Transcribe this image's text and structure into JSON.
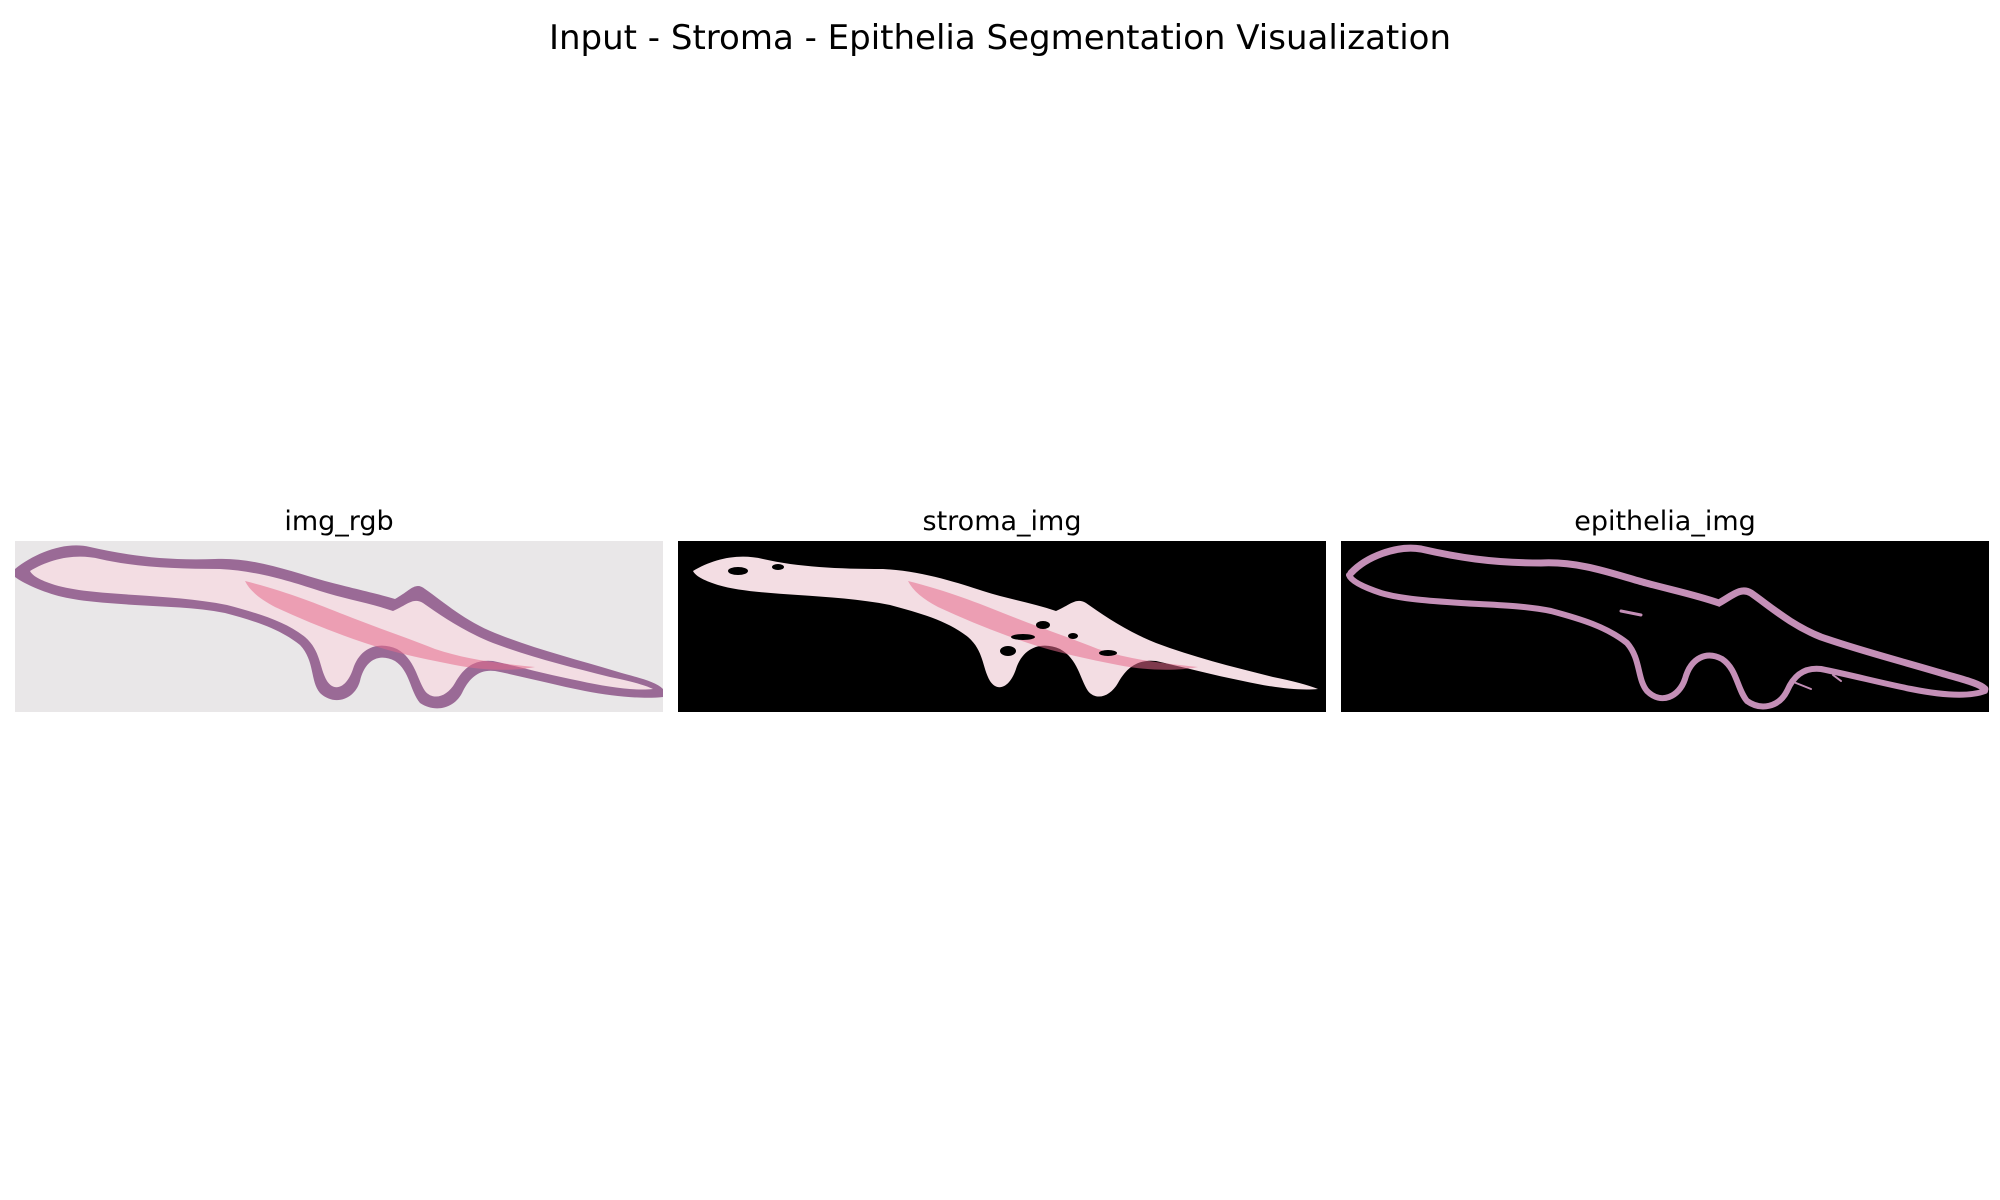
{
  "figure": {
    "title": "Input - Stroma - Epithelia Segmentation Visualization"
  },
  "panels": [
    {
      "title": "img_rgb",
      "background": "#e9e7e8"
    },
    {
      "title": "stroma_img",
      "background": "#000000"
    },
    {
      "title": "epithelia_img",
      "background": "#000000"
    }
  ],
  "colors": {
    "epithelium": "#9a6a96",
    "epithelium_light": "#c48fb7",
    "stroma": "#f3dde3",
    "stroma_pink": "#e56a8c",
    "slide_background": "#e9e7e8",
    "mask_background": "#000000"
  }
}
